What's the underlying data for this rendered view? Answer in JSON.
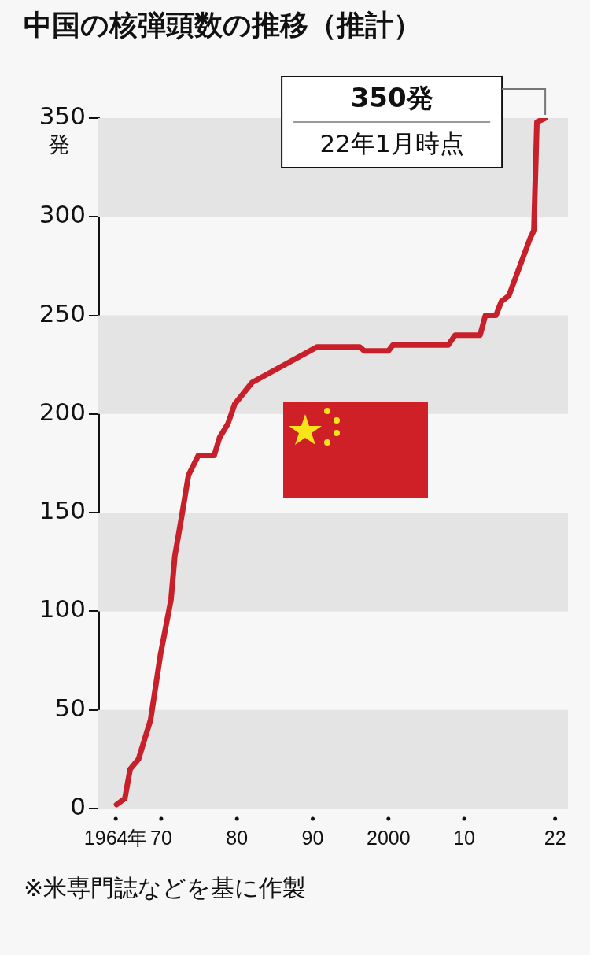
{
  "chart_data": {
    "type": "line",
    "title": "中国の核弾頭数の推移（推計）",
    "ylabel": "発",
    "x": [
      1964.1,
      1965.2,
      1965.9,
      1967,
      1968.6,
      1969.9,
      1971.3,
      1971.8,
      1972.7,
      1973.6,
      1974.9,
      1977,
      1977.7,
      1978.8,
      1979.7,
      1982,
      1990.6,
      1996.2,
      1996.8,
      2000,
      2000.6,
      2007.9,
      2008.8,
      2012.1,
      2012.8,
      2014.2,
      2014.9,
      2015.9,
      2018.7,
      2019.2,
      2019.6,
      2020.7
    ],
    "values": [
      2,
      5,
      20,
      25,
      45,
      78,
      106,
      128,
      148,
      169,
      179,
      179,
      188,
      195,
      205,
      216,
      234,
      234,
      232,
      232,
      235,
      235,
      240,
      240,
      250,
      250,
      257,
      260,
      289,
      293,
      348,
      350
    ],
    "color": "#c8202a",
    "marker": "none",
    "line_style": "solid",
    "grid": false,
    "legend": false,
    "xlim": [
      1961.7,
      2023.7
    ],
    "xticks": [
      {
        "value": 1964,
        "label": "1964年"
      },
      {
        "value": 1970,
        "label": "70"
      },
      {
        "value": 1980,
        "label": "80"
      },
      {
        "value": 1990,
        "label": "90"
      },
      2000,
      {
        "value": 2010,
        "label": "10"
      },
      {
        "value": 2022,
        "label": "22"
      }
    ],
    "ylim": [
      0,
      350
    ],
    "yticks": [
      0,
      50,
      100,
      150,
      200,
      250,
      300,
      350
    ],
    "bands": [
      {
        "axis": "y",
        "from": 0,
        "to": 50,
        "color": "#e4e4e4"
      },
      {
        "axis": "y",
        "from": 100,
        "to": 150,
        "color": "#e4e4e4"
      },
      {
        "axis": "y",
        "from": 200,
        "to": 250,
        "color": "#e4e4e4"
      },
      {
        "axis": "y",
        "from": 300,
        "to": 350,
        "color": "#e4e4e4"
      }
    ],
    "annotations": [
      "350発",
      "22年1月時点",
      "※米専門誌などを基に作製"
    ]
  }
}
